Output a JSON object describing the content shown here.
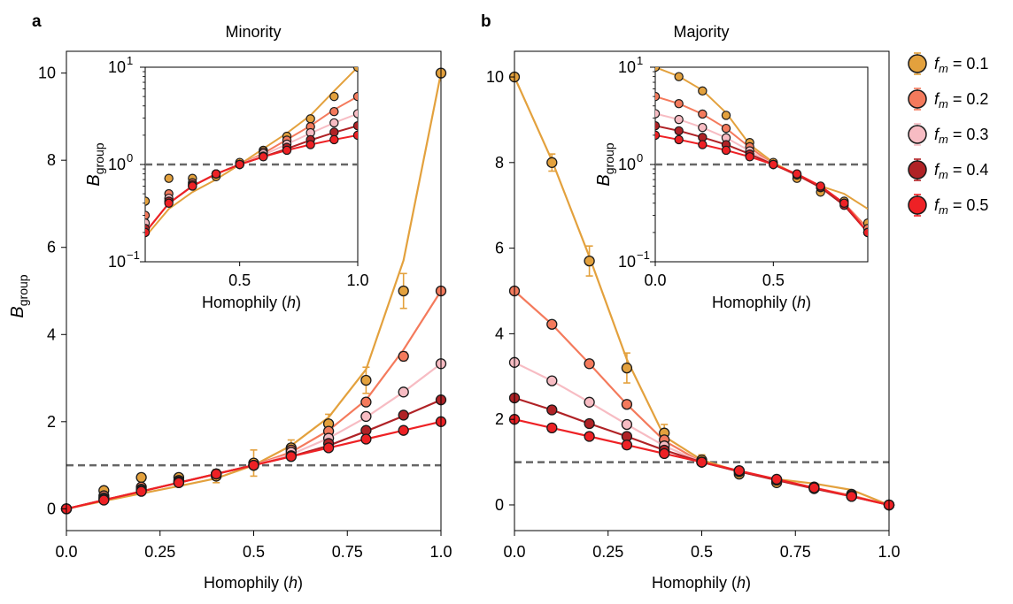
{
  "figure": {
    "legend_prefix": "f",
    "legend_sub": "m",
    "ylabel_main": "B",
    "ylabel_sub": "group"
  },
  "colors": {
    "fm01": "#e3a13d",
    "fm02": "#f47a5c",
    "fm03": "#f7bcc3",
    "fm04": "#b02226",
    "fm05": "#ee2125",
    "baseline": "#666666"
  },
  "chart_data": [
    {
      "panel": "a",
      "title": "Minority",
      "type": "line",
      "xlabel": "Homophily (h)",
      "ylabel": "B group",
      "xlim": [
        0,
        1
      ],
      "ylim": [
        -0.5,
        10.5
      ],
      "xticks": [
        "0.0",
        "0.25",
        "0.5",
        "0.75",
        "1.0"
      ],
      "yticks": [
        "0",
        "2",
        "4",
        "6",
        "8",
        "10"
      ],
      "baseline": 1,
      "x": [
        0,
        0.1,
        0.2,
        0.3,
        0.4,
        0.5,
        0.6,
        0.7,
        0.8,
        0.9,
        1.0
      ],
      "series": [
        {
          "name": "f_m = 0.1",
          "color_key": "fm01",
          "points": [
            0.0,
            0.42,
            0.72,
            0.72,
            0.75,
            1.05,
            1.4,
            1.95,
            2.95,
            5.0,
            10.0
          ],
          "line": [
            0.0,
            0.18,
            0.35,
            0.52,
            0.7,
            1.0,
            1.45,
            2.1,
            3.2,
            5.7,
            10.0
          ],
          "errors": [
            0,
            0.04,
            0.08,
            0.06,
            0.15,
            0.3,
            0.18,
            0.22,
            0.3,
            0.4,
            0.05
          ]
        },
        {
          "name": "f_m = 0.2",
          "color_key": "fm02",
          "points": [
            0.0,
            0.3,
            0.5,
            0.65,
            0.8,
            1.0,
            1.35,
            1.78,
            2.45,
            3.5,
            5.0
          ],
          "line": [
            0.0,
            0.2,
            0.4,
            0.6,
            0.8,
            1.0,
            1.3,
            1.8,
            2.5,
            3.65,
            5.0
          ],
          "errors": [
            0,
            0.03,
            0.03,
            0.03,
            0.04,
            0.04,
            0.05,
            0.06,
            0.08,
            0.1,
            0.05
          ]
        },
        {
          "name": "f_m = 0.3",
          "color_key": "fm03",
          "points": [
            0.0,
            0.25,
            0.45,
            0.6,
            0.8,
            1.0,
            1.3,
            1.62,
            2.12,
            2.68,
            3.33
          ],
          "line": [
            0.0,
            0.2,
            0.4,
            0.6,
            0.8,
            1.0,
            1.25,
            1.62,
            2.1,
            2.68,
            3.33
          ],
          "errors": [
            0,
            0.02,
            0.02,
            0.02,
            0.03,
            0.03,
            0.04,
            0.04,
            0.05,
            0.05,
            0.03
          ]
        },
        {
          "name": "f_m = 0.4",
          "color_key": "fm04",
          "points": [
            0.0,
            0.22,
            0.42,
            0.62,
            0.8,
            1.0,
            1.22,
            1.5,
            1.8,
            2.15,
            2.5
          ],
          "line": [
            0.0,
            0.2,
            0.4,
            0.6,
            0.8,
            1.0,
            1.2,
            1.45,
            1.78,
            2.13,
            2.5
          ],
          "errors": [
            0,
            0.02,
            0.02,
            0.02,
            0.02,
            0.02,
            0.03,
            0.03,
            0.03,
            0.04,
            0.03
          ]
        },
        {
          "name": "f_m = 0.5",
          "color_key": "fm05",
          "points": [
            0.0,
            0.2,
            0.4,
            0.6,
            0.8,
            1.0,
            1.2,
            1.4,
            1.6,
            1.8,
            2.0
          ],
          "line": [
            0.0,
            0.2,
            0.4,
            0.6,
            0.8,
            1.0,
            1.2,
            1.4,
            1.6,
            1.8,
            2.0
          ],
          "errors": [
            0,
            0.02,
            0.02,
            0.02,
            0.02,
            0.02,
            0.02,
            0.02,
            0.02,
            0.02,
            0.02
          ]
        }
      ],
      "inset": {
        "xlabel": "Homophily (h)",
        "ylabel": "B group",
        "scale": "log",
        "xlim": [
          0.1,
          1.0
        ],
        "ylim": [
          0.1,
          10
        ],
        "xticks": [
          "0.5",
          "1.0"
        ],
        "yticks": [
          "10",
          "10",
          "10"
        ],
        "ytick_exp": [
          "−1",
          "0",
          "1"
        ],
        "baseline": 1
      }
    },
    {
      "panel": "b",
      "title": "Majority",
      "type": "line",
      "xlabel": "Homophily (h)",
      "ylabel": "",
      "xlim": [
        0,
        1
      ],
      "ylim": [
        -0.6,
        10.6
      ],
      "xticks": [
        "0.0",
        "0.25",
        "0.5",
        "0.75",
        "1.0"
      ],
      "yticks": [
        "0",
        "2",
        "4",
        "6",
        "8",
        "10"
      ],
      "baseline": 1,
      "x": [
        0,
        0.1,
        0.2,
        0.3,
        0.4,
        0.5,
        0.6,
        0.7,
        0.8,
        0.9,
        1.0
      ],
      "series": [
        {
          "name": "f_m = 0.1",
          "color_key": "fm01",
          "points": [
            10.0,
            8.0,
            5.7,
            3.2,
            1.68,
            1.05,
            0.72,
            0.52,
            0.42,
            0.25,
            0.0
          ],
          "line": [
            10.0,
            8.05,
            5.8,
            3.4,
            1.6,
            1.05,
            0.78,
            0.6,
            0.5,
            0.35,
            0.0
          ],
          "errors": [
            0.05,
            0.2,
            0.35,
            0.35,
            0.2,
            0.12,
            0.06,
            0.05,
            0.04,
            0.04,
            0.0
          ]
        },
        {
          "name": "f_m = 0.2",
          "color_key": "fm02",
          "points": [
            5.0,
            4.22,
            3.3,
            2.35,
            1.52,
            1.0,
            0.8,
            0.58,
            0.4,
            0.22,
            0.0
          ],
          "line": [
            5.0,
            4.22,
            3.3,
            2.35,
            1.5,
            1.0,
            0.78,
            0.58,
            0.4,
            0.22,
            0.0
          ],
          "errors": [
            0.04,
            0.06,
            0.08,
            0.08,
            0.05,
            0.03,
            0.03,
            0.03,
            0.02,
            0.02,
            0.0
          ]
        },
        {
          "name": "f_m = 0.3",
          "color_key": "fm03",
          "points": [
            3.33,
            2.9,
            2.4,
            1.88,
            1.38,
            1.0,
            0.78,
            0.58,
            0.4,
            0.2,
            0.0
          ],
          "line": [
            3.33,
            2.9,
            2.4,
            1.88,
            1.38,
            1.0,
            0.78,
            0.58,
            0.4,
            0.2,
            0.0
          ],
          "errors": [
            0.03,
            0.03,
            0.04,
            0.04,
            0.03,
            0.02,
            0.02,
            0.02,
            0.02,
            0.02,
            0.0
          ]
        },
        {
          "name": "f_m = 0.4",
          "color_key": "fm04",
          "points": [
            2.5,
            2.22,
            1.9,
            1.6,
            1.28,
            1.0,
            0.78,
            0.58,
            0.38,
            0.2,
            0.0
          ],
          "line": [
            2.5,
            2.22,
            1.9,
            1.6,
            1.28,
            1.0,
            0.78,
            0.58,
            0.38,
            0.2,
            0.0
          ],
          "errors": [
            0.02,
            0.02,
            0.03,
            0.03,
            0.02,
            0.02,
            0.02,
            0.02,
            0.02,
            0.02,
            0.0
          ]
        },
        {
          "name": "f_m = 0.5",
          "color_key": "fm05",
          "points": [
            2.0,
            1.8,
            1.6,
            1.4,
            1.2,
            1.0,
            0.8,
            0.6,
            0.4,
            0.2,
            0.0
          ],
          "line": [
            2.0,
            1.8,
            1.6,
            1.4,
            1.2,
            1.0,
            0.8,
            0.6,
            0.4,
            0.2,
            0.0
          ],
          "errors": [
            0.02,
            0.02,
            0.02,
            0.02,
            0.02,
            0.02,
            0.02,
            0.02,
            0.02,
            0.02,
            0.0
          ]
        }
      ],
      "inset": {
        "xlabel": "Homophily (h)",
        "ylabel": "B group",
        "scale": "log",
        "xlim": [
          0.0,
          0.9
        ],
        "ylim": [
          0.1,
          10
        ],
        "xticks": [
          "0.0",
          "0.5"
        ],
        "yticks": [
          "10",
          "10",
          "10"
        ],
        "ytick_exp": [
          "−1",
          "0",
          "1"
        ],
        "baseline": 1
      }
    }
  ],
  "legend": {
    "entries": [
      {
        "prefix": "f",
        "sub": "m",
        "text": " = 0.1",
        "color_key": "fm01"
      },
      {
        "prefix": "f",
        "sub": "m",
        "text": " = 0.2",
        "color_key": "fm02"
      },
      {
        "prefix": "f",
        "sub": "m",
        "text": " = 0.3",
        "color_key": "fm03"
      },
      {
        "prefix": "f",
        "sub": "m",
        "text": " = 0.4",
        "color_key": "fm04"
      },
      {
        "prefix": "f",
        "sub": "m",
        "text": " = 0.5",
        "color_key": "fm05"
      }
    ]
  }
}
